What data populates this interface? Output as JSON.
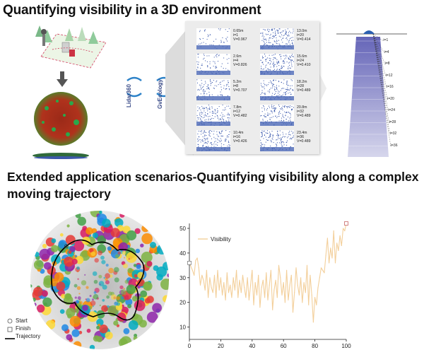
{
  "title": "Quantifying visibility in a 3D environment",
  "subtitle": "Extended application scenarios-Quantifying visibility along a complex moving trajectory",
  "logos": {
    "left": "Lidar360",
    "right": "GvEcology"
  },
  "viewpoint_panels": [
    {
      "distance": "0.65m",
      "index": "i=1",
      "visibility": "V=0.967"
    },
    {
      "distance": "2.6m",
      "index": "i=4",
      "visibility": "V=0.826"
    },
    {
      "distance": "5.2m",
      "index": "i=8",
      "visibility": "V=0.707"
    },
    {
      "distance": "7.8m",
      "index": "i=12",
      "visibility": "V=0.482"
    },
    {
      "distance": "10.4m",
      "index": "i=16",
      "visibility": "V=0.426"
    },
    {
      "distance": "13.0m",
      "index": "i=20",
      "visibility": "V=0.414"
    },
    {
      "distance": "15.6m",
      "index": "i=24",
      "visibility": "V=0.410"
    },
    {
      "distance": "18.2m",
      "index": "i=28",
      "visibility": "V=0.489"
    },
    {
      "distance": "20.8m",
      "index": "i=32",
      "visibility": "V=0.489"
    },
    {
      "distance": "23.4m",
      "index": "i=36",
      "visibility": "V=0.489"
    }
  ],
  "cone_levels": [
    "i=1",
    "i=4",
    "i=8",
    "i=12",
    "i=16",
    "i=20",
    "i=24",
    "i=28",
    "i=32",
    "i=36"
  ],
  "map_legend": {
    "start": "Start",
    "finish": "Finish",
    "trajectory": "Trajectory"
  },
  "colors": {
    "series": "#f3cf9a",
    "panel_bg": "#ececec",
    "cone": "#7f7fc6",
    "trajectory": "#000000"
  },
  "chart_data": {
    "type": "line",
    "title": "",
    "xlabel": "",
    "ylabel": "",
    "xlim": [
      0,
      100
    ],
    "ylim": [
      5,
      52
    ],
    "xticks": [
      0,
      20,
      40,
      60,
      80,
      100
    ],
    "yticks": [
      10,
      20,
      30,
      40,
      50
    ],
    "legend_position": "top-left",
    "series": [
      {
        "name": "Visibility",
        "color": "#f3cf9a",
        "x": [
          0,
          2,
          3,
          4,
          5,
          6,
          7,
          8,
          9,
          10,
          11,
          12,
          13,
          14,
          15,
          16,
          17,
          18,
          19,
          20,
          21,
          22,
          23,
          24,
          25,
          26,
          27,
          28,
          29,
          30,
          31,
          32,
          33,
          34,
          35,
          36,
          37,
          38,
          39,
          40,
          41,
          42,
          43,
          44,
          45,
          46,
          47,
          48,
          49,
          50,
          51,
          52,
          53,
          54,
          55,
          56,
          57,
          58,
          59,
          60,
          61,
          62,
          63,
          64,
          65,
          66,
          67,
          68,
          69,
          70,
          71,
          72,
          73,
          74,
          75,
          76,
          77,
          78,
          79,
          80,
          81,
          82,
          83,
          84,
          85,
          86,
          87,
          88,
          89,
          90,
          91,
          92,
          93,
          94,
          95,
          96,
          97,
          98,
          99,
          100
        ],
        "values": [
          36,
          33,
          31,
          37,
          38,
          34,
          27,
          31,
          29,
          25,
          33,
          22,
          30,
          26,
          24,
          31,
          22,
          33,
          25,
          30,
          23,
          28,
          21,
          32,
          24,
          27,
          22,
          30,
          25,
          33,
          22,
          29,
          24,
          31,
          26,
          22,
          30,
          21,
          27,
          33,
          19,
          28,
          23,
          31,
          18,
          26,
          29,
          22,
          32,
          21,
          27,
          33,
          17,
          25,
          29,
          22,
          35,
          30,
          23,
          28,
          20,
          33,
          21,
          27,
          31,
          16,
          24,
          34,
          27,
          23,
          30,
          20,
          28,
          24,
          35,
          19,
          31,
          23,
          12,
          22,
          19,
          26,
          30,
          34,
          33,
          32,
          39,
          46,
          36,
          42,
          38,
          49,
          36,
          44,
          41,
          47,
          43,
          50,
          49,
          52
        ]
      }
    ]
  }
}
